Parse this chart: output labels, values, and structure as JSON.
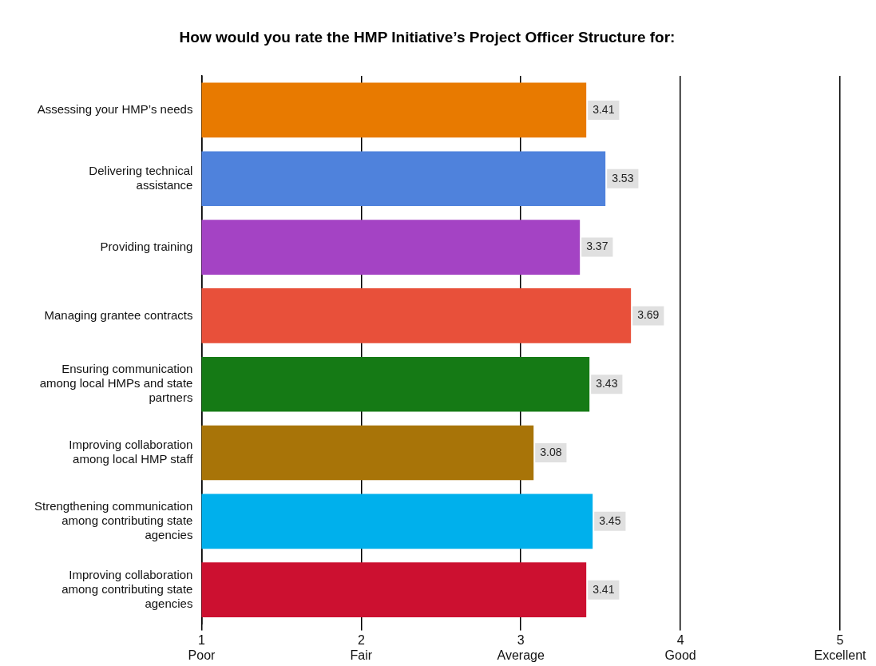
{
  "chart_data": {
    "type": "bar",
    "orientation": "horizontal",
    "title": "How would you rate the HMP Initiative’s Project Officer Structure for:",
    "categories": [
      "Assessing your HMP’s needs",
      "Delivering technical assistance",
      "Providing training",
      "Managing grantee contracts",
      "Ensuring communication among local HMPs and state partners",
      "Improving collaboration among local HMP staff",
      "Strengthening communication among contributing state agencies",
      "Improving collaboration among contributing state agencies"
    ],
    "values": [
      3.41,
      3.53,
      3.37,
      3.69,
      3.43,
      3.08,
      3.45,
      3.41
    ],
    "colors": [
      "#e87a00",
      "#4f82dc",
      "#a443c4",
      "#e8503a",
      "#157a15",
      "#a87408",
      "#00b0ec",
      "#cc1030"
    ],
    "xlim": [
      1,
      5
    ],
    "xticks": [
      {
        "value": 1,
        "label": "1\nPoor"
      },
      {
        "value": 2,
        "label": "2\nFair"
      },
      {
        "value": 3,
        "label": "3\nAverage"
      },
      {
        "value": 4,
        "label": "4\nGood"
      },
      {
        "value": 5,
        "label": "5\nExcellent"
      }
    ],
    "grid": "x",
    "data_labels": true
  }
}
